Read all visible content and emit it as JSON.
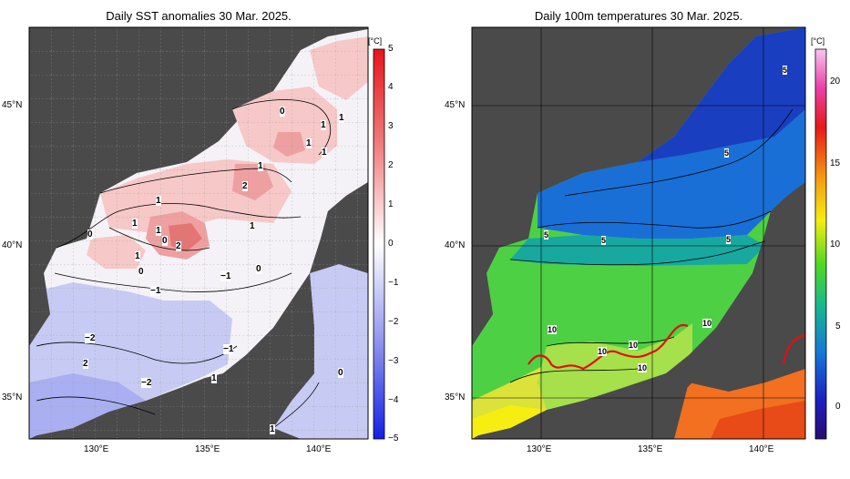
{
  "left_panel": {
    "title": "Daily SST anomalies 30 Mar. 2025.",
    "unit": "[°C]",
    "colorbar_ticks": [
      "5",
      "4",
      "3",
      "2",
      "1",
      "0",
      "−1",
      "−2",
      "−3",
      "−4",
      "−5"
    ],
    "lat_labels": [
      "45°N",
      "40°N",
      "35°N"
    ],
    "lon_labels": [
      "130°E",
      "135°E",
      "140°E"
    ],
    "contour_labels": [
      {
        "text": "0"
      },
      {
        "text": "1"
      },
      {
        "text": "1"
      },
      {
        "text": "1"
      },
      {
        "text": "1"
      },
      {
        "text": "1"
      },
      {
        "text": "2"
      },
      {
        "text": "1"
      },
      {
        "text": "1"
      },
      {
        "text": "1"
      },
      {
        "text": "2"
      },
      {
        "text": "0"
      },
      {
        "text": "0"
      },
      {
        "text": "1"
      },
      {
        "text": "1"
      },
      {
        "text": "−1"
      },
      {
        "text": "0"
      },
      {
        "text": "0"
      },
      {
        "text": "−1"
      },
      {
        "text": "−2"
      },
      {
        "text": "2"
      },
      {
        "text": "−1"
      },
      {
        "text": "−2"
      },
      {
        "text": "1"
      },
      {
        "text": "0"
      },
      {
        "text": "1"
      }
    ]
  },
  "right_panel": {
    "title": "Daily 100m temperatures 30 Mar. 2025.",
    "unit": "[°C]",
    "colorbar_ticks": [
      "20",
      "15",
      "10",
      "5",
      "0"
    ],
    "lat_labels": [
      "45°N",
      "40°N",
      "35°N"
    ],
    "lon_labels": [
      "130°E",
      "135°E",
      "140°E"
    ],
    "contour_labels": [
      {
        "text": "5"
      },
      {
        "text": "5"
      },
      {
        "text": "5"
      },
      {
        "text": "5"
      },
      {
        "text": "5"
      },
      {
        "text": "10"
      },
      {
        "text": "10"
      },
      {
        "text": "10"
      },
      {
        "text": "10"
      },
      {
        "text": "10"
      }
    ]
  },
  "colors": {
    "land": "#4a4a4a",
    "anomaly_positive": "#e23b3b",
    "anomaly_negative": "#3b48e0",
    "front_line": "#e01010"
  }
}
